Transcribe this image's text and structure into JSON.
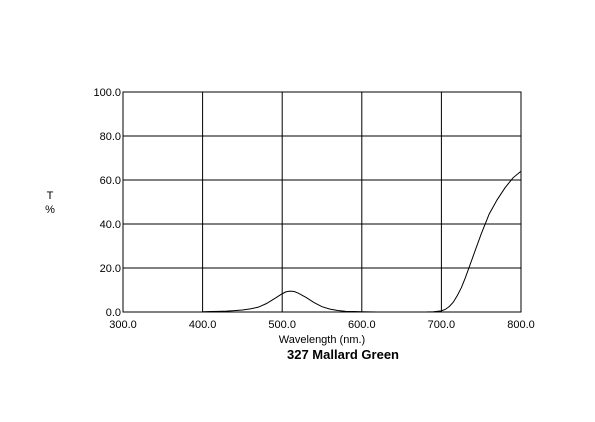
{
  "chart_data": {
    "type": "line",
    "title": "327 Mallard Green",
    "xlabel": "Wavelength (nm.)",
    "ylabel": [
      "T",
      "%"
    ],
    "xlim": [
      300,
      800
    ],
    "ylim": [
      0,
      100
    ],
    "xticks": [
      "300.0",
      "400.0",
      "500.0",
      "600.0",
      "700.0",
      "800.0"
    ],
    "yticks": [
      "0.0",
      "20.0",
      "40.0",
      "60.0",
      "80.0",
      "100.0"
    ],
    "grid": true,
    "line_color": "#000000",
    "series": [
      {
        "x": [
          400,
          410,
          420,
          430,
          440,
          450,
          460,
          470,
          480,
          490,
          500,
          505,
          510,
          515,
          520,
          530,
          540,
          550,
          560,
          570,
          580,
          590,
          600,
          620,
          640,
          660,
          680,
          690,
          700,
          705,
          710,
          715,
          720,
          725,
          730,
          740,
          750,
          760,
          770,
          780,
          790,
          800
        ],
        "y": [
          0.1,
          0.2,
          0.3,
          0.4,
          0.6,
          0.9,
          1.4,
          2.2,
          3.8,
          6.0,
          8.3,
          9.2,
          9.5,
          9.3,
          8.6,
          6.6,
          4.3,
          2.4,
          1.3,
          0.7,
          0.3,
          0.2,
          0.1,
          0.0,
          0.0,
          0.0,
          0.0,
          0.1,
          0.5,
          1.2,
          2.5,
          4.5,
          7.5,
          11.0,
          15.5,
          25.5,
          35.5,
          44.5,
          51.0,
          56.5,
          61.0,
          64.0
        ]
      }
    ]
  }
}
